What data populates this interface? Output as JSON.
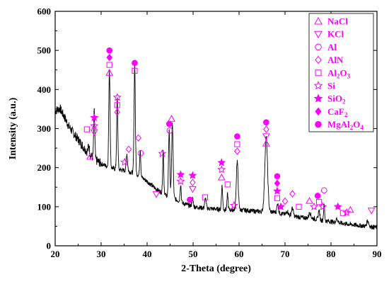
{
  "chart_data": {
    "type": "line",
    "xlabel": "2-Theta (degree)",
    "ylabel": "Intensity (a.u.)",
    "xlim": [
      20,
      90
    ],
    "ylim": [
      0,
      600
    ],
    "xticks": [
      "20",
      "30",
      "40",
      "50",
      "60",
      "70",
      "80",
      "90"
    ],
    "yticks": [
      "0",
      "100",
      "200",
      "300",
      "400",
      "500",
      "600"
    ],
    "grid": false,
    "legend_position": "top-right",
    "line_color": "#000000",
    "marker_color": "#ff00ff",
    "legend": [
      {
        "label": "NaCl",
        "marker": "triangle-up-open"
      },
      {
        "label": "KCl",
        "marker": "triangle-down-open"
      },
      {
        "label": "Al",
        "marker": "circle-open"
      },
      {
        "label": "AlN",
        "marker": "diamond-open"
      },
      {
        "label": "Al2O3",
        "marker": "square-open"
      },
      {
        "label": "Si",
        "marker": "star-open"
      },
      {
        "label": "SiO2",
        "marker": "star-filled"
      },
      {
        "label": "CaF2",
        "marker": "diamond-filled"
      },
      {
        "label": "MgAl2O4",
        "marker": "circle-filled"
      }
    ],
    "baseline": [
      [
        20,
        345
      ],
      [
        21,
        352
      ],
      [
        22,
        330
      ],
      [
        23,
        305
      ],
      [
        24,
        288
      ],
      [
        25,
        272
      ],
      [
        26,
        255
      ],
      [
        27,
        240
      ],
      [
        28,
        228
      ],
      [
        29,
        218
      ],
      [
        30,
        210
      ],
      [
        32,
        200
      ],
      [
        34,
        195
      ],
      [
        36,
        190
      ],
      [
        38,
        182
      ],
      [
        40,
        165
      ],
      [
        42,
        145
      ],
      [
        44,
        130
      ],
      [
        46,
        120
      ],
      [
        48,
        108
      ],
      [
        50,
        100
      ],
      [
        52,
        97
      ],
      [
        54,
        95
      ],
      [
        56,
        93
      ],
      [
        58,
        92
      ],
      [
        60,
        92
      ],
      [
        62,
        90
      ],
      [
        64,
        88
      ],
      [
        66,
        87
      ],
      [
        68,
        86
      ],
      [
        70,
        80
      ],
      [
        72,
        75
      ],
      [
        74,
        72
      ],
      [
        76,
        70
      ],
      [
        78,
        65
      ],
      [
        80,
        62
      ],
      [
        82,
        58
      ],
      [
        84,
        55
      ],
      [
        86,
        52
      ],
      [
        88,
        50
      ],
      [
        90,
        47
      ]
    ],
    "peaks": [
      [
        27.3,
        20,
        0.15
      ],
      [
        28.5,
        120,
        0.12
      ],
      [
        31.8,
        250,
        0.14
      ],
      [
        33.5,
        180,
        0.13
      ],
      [
        35.6,
        45,
        0.15
      ],
      [
        37.3,
        280,
        0.14
      ],
      [
        38.5,
        70,
        0.12
      ],
      [
        43.5,
        110,
        0.12
      ],
      [
        44.8,
        170,
        0.14
      ],
      [
        45.5,
        190,
        0.16
      ],
      [
        47.3,
        45,
        0.12
      ],
      [
        49.9,
        20,
        0.15
      ],
      [
        52.7,
        25,
        0.15
      ],
      [
        56.3,
        60,
        0.13
      ],
      [
        57.5,
        40,
        0.12
      ],
      [
        59.6,
        125,
        0.2
      ],
      [
        65.9,
        190,
        0.3
      ],
      [
        68.4,
        25,
        0.15
      ],
      [
        70.5,
        10,
        0.2
      ],
      [
        71.6,
        20,
        0.2
      ],
      [
        75.4,
        15,
        0.2
      ],
      [
        77.4,
        25,
        0.15
      ],
      [
        78.5,
        40,
        0.12
      ],
      [
        81.3,
        10,
        0.2
      ],
      [
        88.0,
        15,
        0.2
      ]
    ],
    "markers": [
      {
        "x": 26.9,
        "y": 298,
        "marker": "square-open"
      },
      {
        "x": 27.6,
        "y": 228,
        "marker": "triangle-up-open"
      },
      {
        "x": 28.5,
        "y": 328,
        "marker": "star-filled"
      },
      {
        "x": 28.5,
        "y": 307,
        "marker": "star-open"
      },
      {
        "x": 28.5,
        "y": 290,
        "marker": "triangle-down-open"
      },
      {
        "x": 31.8,
        "y": 500,
        "marker": "circle-filled"
      },
      {
        "x": 31.8,
        "y": 482,
        "marker": "diamond-filled"
      },
      {
        "x": 31.8,
        "y": 463,
        "marker": "square-open"
      },
      {
        "x": 31.8,
        "y": 443,
        "marker": "triangle-up-open"
      },
      {
        "x": 33.5,
        "y": 380,
        "marker": "star-open"
      },
      {
        "x": 33.5,
        "y": 360,
        "marker": "square-open"
      },
      {
        "x": 33.5,
        "y": 342,
        "marker": "diamond-open"
      },
      {
        "x": 35.1,
        "y": 214,
        "marker": "star-open"
      },
      {
        "x": 36.0,
        "y": 247,
        "marker": "diamond-open"
      },
      {
        "x": 37.3,
        "y": 468,
        "marker": "circle-filled"
      },
      {
        "x": 37.3,
        "y": 448,
        "marker": "square-open"
      },
      {
        "x": 38.1,
        "y": 276,
        "marker": "diamond-open"
      },
      {
        "x": 38.6,
        "y": 237,
        "marker": "circle-open"
      },
      {
        "x": 42.0,
        "y": 132,
        "marker": "triangle-down-open"
      },
      {
        "x": 43.3,
        "y": 236,
        "marker": "star-open"
      },
      {
        "x": 44.8,
        "y": 312,
        "marker": "circle-filled"
      },
      {
        "x": 44.9,
        "y": 295,
        "marker": "circle-open"
      },
      {
        "x": 45.3,
        "y": 325,
        "marker": "triangle-up-open"
      },
      {
        "x": 47.3,
        "y": 182,
        "marker": "star-filled"
      },
      {
        "x": 47.3,
        "y": 165,
        "marker": "star-open"
      },
      {
        "x": 49.3,
        "y": 118,
        "marker": "circle-filled"
      },
      {
        "x": 49.9,
        "y": 180,
        "marker": "star-filled"
      },
      {
        "x": 49.9,
        "y": 162,
        "marker": "diamond-open"
      },
      {
        "x": 49.9,
        "y": 145,
        "marker": "triangle-down-open"
      },
      {
        "x": 52.6,
        "y": 124,
        "marker": "square-open"
      },
      {
        "x": 56.2,
        "y": 213,
        "marker": "star-filled"
      },
      {
        "x": 56.2,
        "y": 195,
        "marker": "star-open"
      },
      {
        "x": 56.2,
        "y": 175,
        "marker": "triangle-up-open"
      },
      {
        "x": 57.5,
        "y": 157,
        "marker": "square-open"
      },
      {
        "x": 58.9,
        "y": 103,
        "marker": "star-open"
      },
      {
        "x": 59.6,
        "y": 280,
        "marker": "circle-filled"
      },
      {
        "x": 59.6,
        "y": 260,
        "marker": "square-open"
      },
      {
        "x": 59.6,
        "y": 242,
        "marker": "diamond-open"
      },
      {
        "x": 65.9,
        "y": 316,
        "marker": "circle-filled"
      },
      {
        "x": 65.9,
        "y": 298,
        "marker": "diamond-open"
      },
      {
        "x": 65.9,
        "y": 280,
        "marker": "triangle-down-open"
      },
      {
        "x": 65.9,
        "y": 262,
        "marker": "triangle-up-open"
      },
      {
        "x": 68.3,
        "y": 178,
        "marker": "circle-filled"
      },
      {
        "x": 68.3,
        "y": 160,
        "marker": "diamond-filled"
      },
      {
        "x": 68.3,
        "y": 140,
        "marker": "star-filled"
      },
      {
        "x": 68.3,
        "y": 122,
        "marker": "square-open"
      },
      {
        "x": 69.1,
        "y": 100,
        "marker": "star-filled"
      },
      {
        "x": 70.0,
        "y": 114,
        "marker": "diamond-open"
      },
      {
        "x": 71.6,
        "y": 133,
        "marker": "diamond-open"
      },
      {
        "x": 73.0,
        "y": 100,
        "marker": "square-open"
      },
      {
        "x": 75.3,
        "y": 115,
        "marker": "triangle-up-open"
      },
      {
        "x": 76.3,
        "y": 100,
        "marker": "star-open"
      },
      {
        "x": 77.1,
        "y": 128,
        "marker": "circle-filled"
      },
      {
        "x": 77.4,
        "y": 112,
        "marker": "square-open"
      },
      {
        "x": 78.5,
        "y": 142,
        "marker": "circle-open"
      },
      {
        "x": 78.2,
        "y": 100,
        "marker": "star-open"
      },
      {
        "x": 81.5,
        "y": 100,
        "marker": "star-filled"
      },
      {
        "x": 82.6,
        "y": 84,
        "marker": "square-open"
      },
      {
        "x": 83.4,
        "y": 85,
        "marker": "star-open"
      },
      {
        "x": 84.2,
        "y": 92,
        "marker": "triangle-up-open"
      },
      {
        "x": 88.8,
        "y": 90,
        "marker": "triangle-down-open"
      }
    ]
  }
}
